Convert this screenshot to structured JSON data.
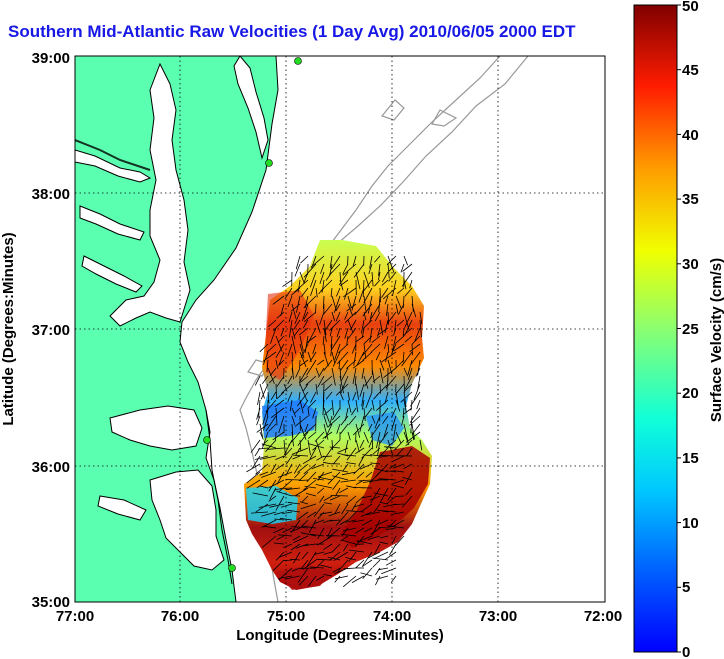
{
  "title": "Southern Mid-Atlantic Raw Velocities (1 Day Avg) 2010/06/05 2000 EDT",
  "axes": {
    "xlabel": "Longitude (Degrees:Minutes)",
    "ylabel": "Latitude (Degrees:Minutes)",
    "x_ticks": [
      "77:00",
      "76:00",
      "75:00",
      "74:00",
      "73:00",
      "72:00"
    ],
    "y_ticks": [
      "39:00",
      "38:00",
      "37:00",
      "36:00",
      "35:00"
    ],
    "xlim": [
      -77,
      -72
    ],
    "ylim": [
      35,
      39
    ],
    "grid": "dotted"
  },
  "colorbar": {
    "label": "Surface Velocity (cm/s)",
    "ticks": [
      "0",
      "5",
      "10",
      "15",
      "20",
      "25",
      "30",
      "35",
      "40",
      "45",
      "50"
    ],
    "range": [
      0,
      50
    ],
    "colormap": "jet"
  },
  "colors": {
    "title": "#1818e6",
    "land": "#5affb0",
    "coast": "#000000",
    "bathymetry": "#999999",
    "station": "#22dd22"
  }
}
